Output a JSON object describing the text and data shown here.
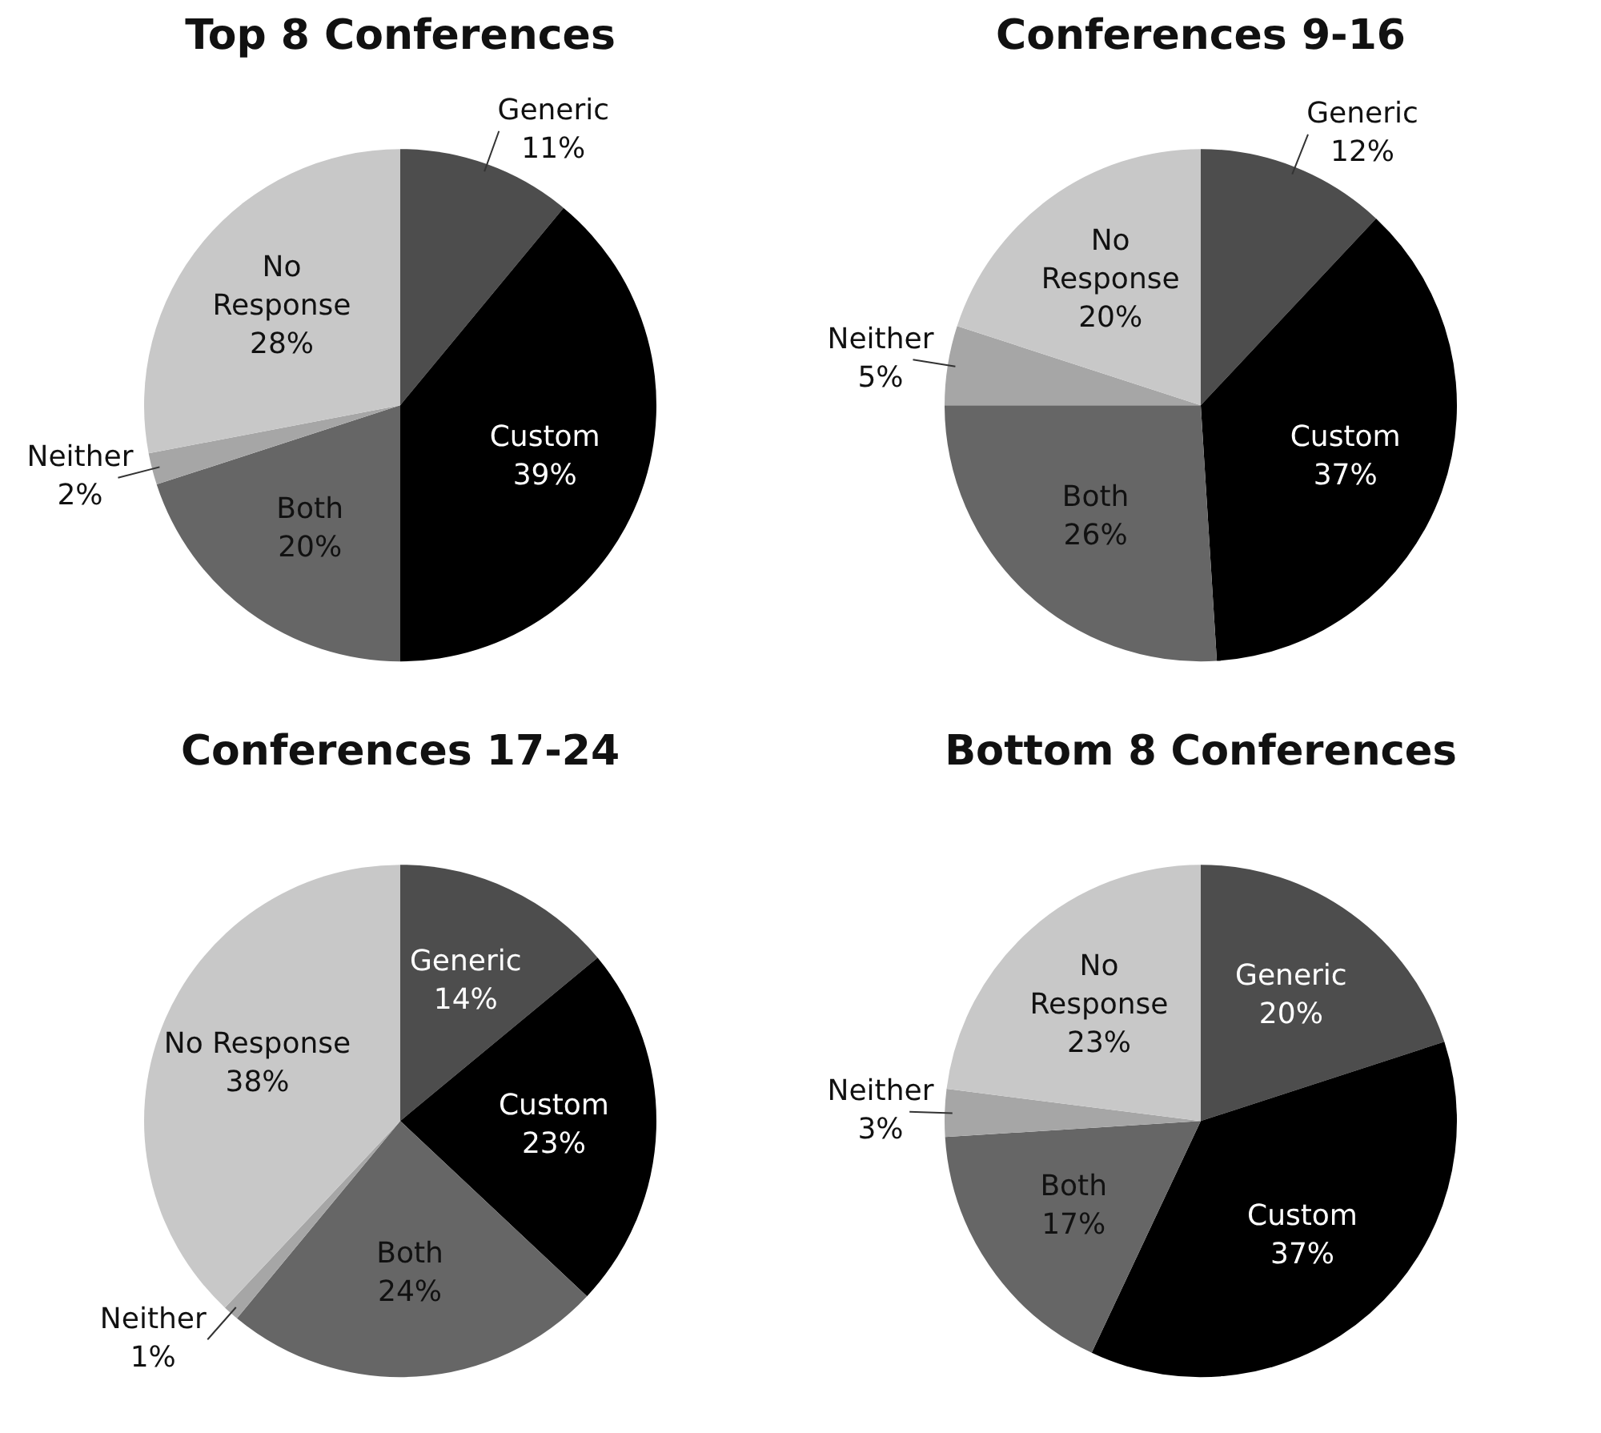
{
  "chart_data": [
    {
      "type": "pie",
      "title": "Top 8 Conferences",
      "categories": [
        "Generic",
        "Custom",
        "Both",
        "Neither",
        "No Response"
      ],
      "values": [
        11,
        39,
        20,
        2,
        28
      ],
      "value_labels": [
        "11%",
        "39%",
        "20%",
        "2%",
        "28%"
      ],
      "colors": [
        "#4d4d4d",
        "#000000",
        "#666666",
        "#a6a6a6",
        "#c8c8c8"
      ],
      "legend": false
    },
    {
      "type": "pie",
      "title": "Conferences 9-16",
      "categories": [
        "Generic",
        "Custom",
        "Both",
        "Neither",
        "No Response"
      ],
      "values": [
        12,
        37,
        26,
        5,
        20
      ],
      "value_labels": [
        "12%",
        "37%",
        "26%",
        "5%",
        "20%"
      ],
      "colors": [
        "#4d4d4d",
        "#000000",
        "#666666",
        "#a6a6a6",
        "#c8c8c8"
      ],
      "legend": false
    },
    {
      "type": "pie",
      "title": "Conferences 17-24",
      "categories": [
        "Generic",
        "Custom",
        "Both",
        "Neither",
        "No Response"
      ],
      "values": [
        14,
        23,
        24,
        1,
        38
      ],
      "value_labels": [
        "14%",
        "23%",
        "24%",
        "1%",
        "38%"
      ],
      "colors": [
        "#4d4d4d",
        "#000000",
        "#666666",
        "#a6a6a6",
        "#c8c8c8"
      ],
      "legend": false
    },
    {
      "type": "pie",
      "title": "Bottom 8 Conferences",
      "categories": [
        "Generic",
        "Custom",
        "Both",
        "Neither",
        "No Response"
      ],
      "values": [
        20,
        37,
        17,
        3,
        23
      ],
      "value_labels": [
        "20%",
        "37%",
        "17%",
        "3%",
        "23%"
      ],
      "colors": [
        "#4d4d4d",
        "#000000",
        "#666666",
        "#a6a6a6",
        "#c8c8c8"
      ],
      "legend": false
    }
  ]
}
